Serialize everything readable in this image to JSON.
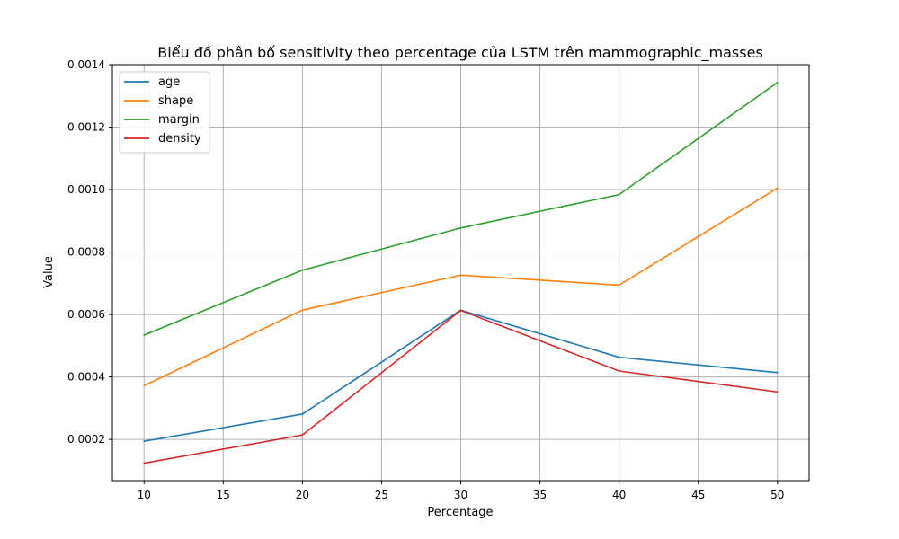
{
  "chart_data": {
    "type": "line",
    "title": "Biểu đồ phân bố sensitivity theo percentage của LSTM trên mammographic_masses",
    "xlabel": "Percentage",
    "ylabel": "Value",
    "x": [
      10,
      20,
      30,
      40,
      50
    ],
    "xlim": [
      8,
      52
    ],
    "ylim": [
      6.8e-05,
      0.0014
    ],
    "xticks": [
      10,
      15,
      20,
      25,
      30,
      35,
      40,
      45,
      50
    ],
    "xtick_labels": [
      "10",
      "15",
      "20",
      "25",
      "30",
      "35",
      "40",
      "45",
      "50"
    ],
    "yticks": [
      0.0002,
      0.0004,
      0.0006,
      0.0008,
      0.001,
      0.0012,
      0.0014
    ],
    "ytick_labels": [
      "0.0002",
      "0.0004",
      "0.0006",
      "0.0008",
      "0.0010",
      "0.0012",
      "0.0014"
    ],
    "grid": true,
    "legend_position": "top-left",
    "series": [
      {
        "name": "age",
        "color": "#1f77b4",
        "values": [
          0.000194,
          0.000281,
          0.000614,
          0.000463,
          0.000414
        ]
      },
      {
        "name": "shape",
        "color": "#ff7f0e",
        "values": [
          0.000372,
          0.000614,
          0.000726,
          0.000694,
          0.001005
        ]
      },
      {
        "name": "margin",
        "color": "#2ca02c",
        "values": [
          0.000534,
          0.000742,
          0.000877,
          0.000984,
          0.001343
        ]
      },
      {
        "name": "density",
        "color": "#d62728",
        "values": [
          0.000124,
          0.000214,
          0.000613,
          0.000419,
          0.000352
        ]
      }
    ]
  }
}
